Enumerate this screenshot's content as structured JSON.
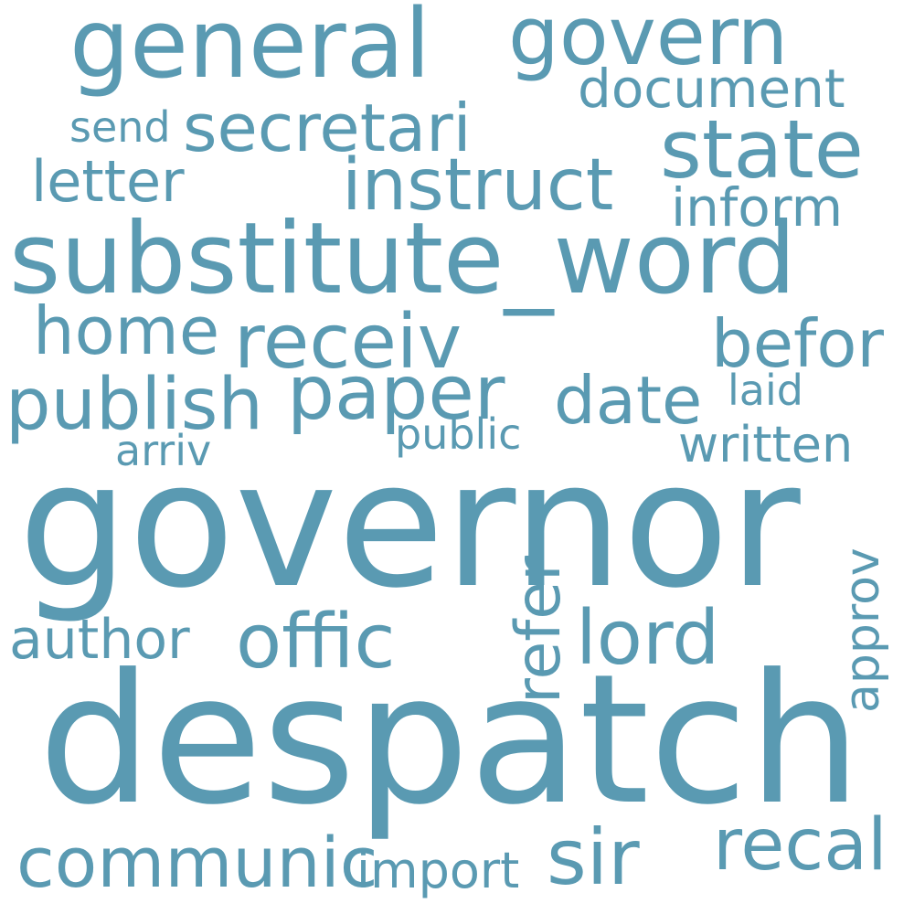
{
  "theme": {
    "word_color": "#5a9ab2",
    "background": "#ffffff"
  },
  "words": {
    "governor": "governor",
    "despatch": "despatch",
    "substitute_word": "substitute_word",
    "general": "general",
    "govern": "govern",
    "state": "state",
    "secretari": "secretari",
    "instruct": "instruct",
    "document": "document",
    "send": "send",
    "letter": "letter",
    "inform": "inform",
    "receiv": "receiv",
    "home": "home",
    "befor": "befor",
    "paper": "paper",
    "publish": "publish",
    "date": "date",
    "laid": "laid",
    "public": "public",
    "arriv": "arriv",
    "written": "written",
    "refer": "refer",
    "approv": "approv",
    "offic": "offic",
    "lord": "lord",
    "author": "author",
    "communic": "communic",
    "import": "import",
    "sir": "sir",
    "recal": "recal"
  }
}
